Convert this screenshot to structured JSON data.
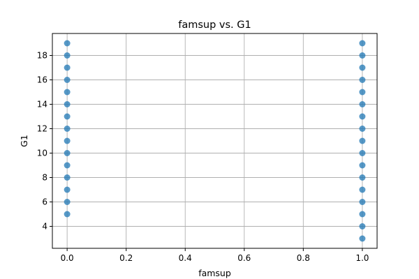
{
  "chart_data": {
    "type": "scatter",
    "title": "famsup vs. G1",
    "xlabel": "famsup",
    "ylabel": "G1",
    "xlim": [
      -0.05,
      1.05
    ],
    "ylim": [
      2.2,
      19.8
    ],
    "x_ticks": [
      0.0,
      0.2,
      0.4,
      0.6,
      0.8,
      1.0
    ],
    "x_tick_labels": [
      "0.0",
      "0.2",
      "0.4",
      "0.6",
      "0.8",
      "1.0"
    ],
    "y_ticks": [
      4,
      6,
      8,
      10,
      12,
      14,
      16,
      18
    ],
    "y_tick_labels": [
      "4",
      "6",
      "8",
      "10",
      "12",
      "14",
      "16",
      "18"
    ],
    "grid": true,
    "point_color": "#1f77b4",
    "points": [
      {
        "x": 0,
        "y": 5
      },
      {
        "x": 0,
        "y": 6
      },
      {
        "x": 0,
        "y": 7
      },
      {
        "x": 0,
        "y": 8
      },
      {
        "x": 0,
        "y": 9
      },
      {
        "x": 0,
        "y": 10
      },
      {
        "x": 0,
        "y": 11
      },
      {
        "x": 0,
        "y": 12
      },
      {
        "x": 0,
        "y": 13
      },
      {
        "x": 0,
        "y": 14
      },
      {
        "x": 0,
        "y": 15
      },
      {
        "x": 0,
        "y": 16
      },
      {
        "x": 0,
        "y": 17
      },
      {
        "x": 0,
        "y": 18
      },
      {
        "x": 0,
        "y": 19
      },
      {
        "x": 1,
        "y": 3
      },
      {
        "x": 1,
        "y": 4
      },
      {
        "x": 1,
        "y": 5
      },
      {
        "x": 1,
        "y": 6
      },
      {
        "x": 1,
        "y": 7
      },
      {
        "x": 1,
        "y": 8
      },
      {
        "x": 1,
        "y": 9
      },
      {
        "x": 1,
        "y": 10
      },
      {
        "x": 1,
        "y": 11
      },
      {
        "x": 1,
        "y": 12
      },
      {
        "x": 1,
        "y": 13
      },
      {
        "x": 1,
        "y": 14
      },
      {
        "x": 1,
        "y": 15
      },
      {
        "x": 1,
        "y": 16
      },
      {
        "x": 1,
        "y": 17
      },
      {
        "x": 1,
        "y": 18
      },
      {
        "x": 1,
        "y": 19
      }
    ]
  }
}
